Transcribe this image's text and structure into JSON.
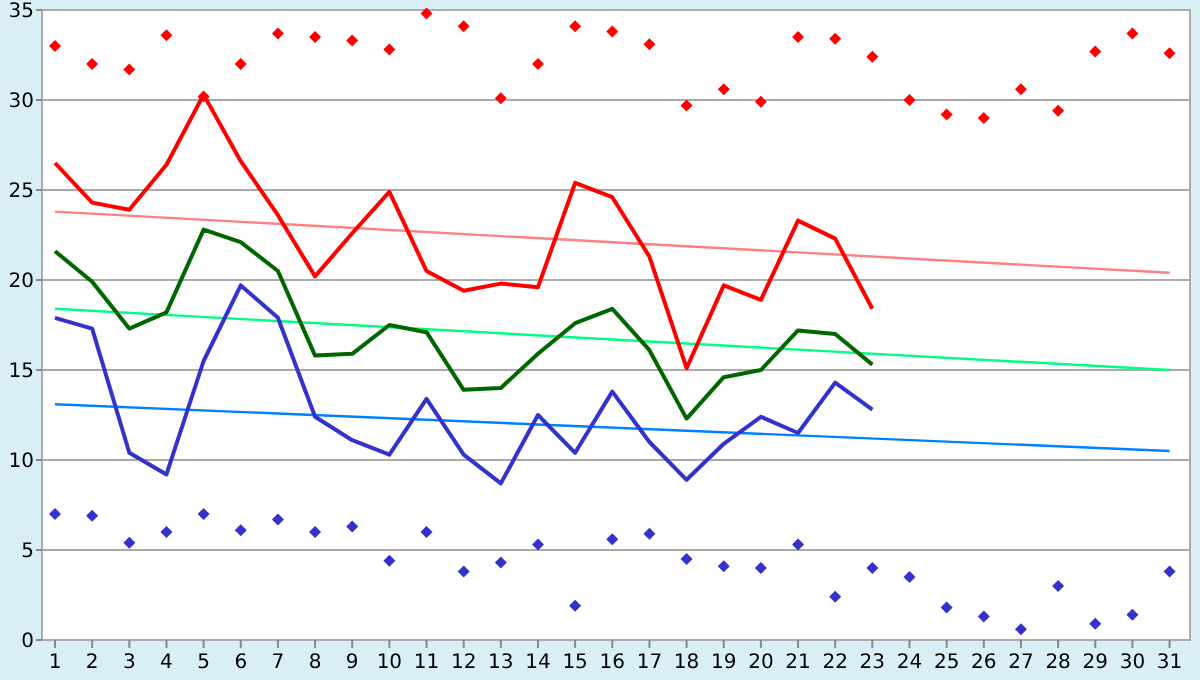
{
  "chart_data": {
    "type": "line",
    "x": [
      1,
      2,
      3,
      4,
      5,
      6,
      7,
      8,
      9,
      10,
      11,
      12,
      13,
      14,
      15,
      16,
      17,
      18,
      19,
      20,
      21,
      22,
      23
    ],
    "xlim": [
      0.65,
      31.55
    ],
    "xticks": [
      1,
      2,
      3,
      4,
      5,
      6,
      7,
      8,
      9,
      10,
      11,
      12,
      13,
      14,
      15,
      16,
      17,
      18,
      19,
      20,
      21,
      22,
      23,
      24,
      25,
      26,
      27,
      28,
      29,
      30,
      31
    ],
    "ylim": [
      0,
      35
    ],
    "yticks": [
      0,
      5,
      10,
      15,
      20,
      25,
      30,
      35
    ],
    "grid": "y",
    "series": [
      {
        "type": "scatter",
        "marker": "diamond",
        "color": "#ff0000",
        "x": [
          1,
          2,
          3,
          4,
          5,
          6,
          7,
          8,
          9,
          10,
          11,
          12,
          13,
          14,
          15,
          16,
          17,
          18,
          19,
          20,
          21,
          22,
          23,
          24,
          25,
          26,
          27,
          28,
          29,
          30,
          31
        ],
        "values": [
          33,
          32,
          31.7,
          33.6,
          30.2,
          32,
          33.7,
          33.5,
          33.3,
          32.8,
          34.8,
          34.1,
          30.1,
          32,
          34.1,
          33.8,
          33.1,
          29.7,
          30.6,
          29.9,
          33.5,
          33.4,
          32.4,
          30,
          29.2,
          29,
          30.6,
          29.4,
          32.7,
          33.7,
          32.6
        ]
      },
      {
        "type": "scatter",
        "marker": "diamond",
        "color": "#3333cc",
        "x": [
          1,
          2,
          3,
          4,
          5,
          6,
          7,
          8,
          9,
          10,
          11,
          12,
          13,
          14,
          15,
          16,
          17,
          18,
          19,
          20,
          21,
          22,
          23,
          24,
          25,
          26,
          27,
          28,
          29,
          30,
          31
        ],
        "values": [
          7,
          6.9,
          5.4,
          6,
          7,
          6.1,
          6.7,
          6,
          6.3,
          4.4,
          6,
          3.8,
          4.3,
          5.3,
          1.9,
          5.6,
          5.9,
          4.5,
          4.1,
          4,
          5.3,
          2.4,
          4,
          3.5,
          1.8,
          1.3,
          0.6,
          3,
          0.9,
          1.4,
          3.8
        ]
      },
      {
        "color": "#ff8080",
        "x": [
          1,
          31
        ],
        "values": [
          23.8,
          20.4
        ]
      },
      {
        "color": "#00ff80",
        "x": [
          1,
          31
        ],
        "values": [
          18.4,
          15
        ]
      },
      {
        "color": "#0080ff",
        "x": [
          1,
          31
        ],
        "values": [
          13.1,
          10.5
        ]
      },
      {
        "color": "#ff0000",
        "values": [
          26.5,
          24.3,
          23.9,
          26.4,
          30.3,
          26.6,
          23.6,
          20.2,
          22.6,
          24.9,
          20.5,
          19.4,
          19.8,
          19.6,
          25.4,
          24.6,
          21.3,
          15.1,
          19.7,
          18.9,
          23.3,
          22.3,
          18.4
        ]
      },
      {
        "color": "#006600",
        "values": [
          21.6,
          19.9,
          17.3,
          18.2,
          22.8,
          22.1,
          20.5,
          15.8,
          15.9,
          17.5,
          17.1,
          13.9,
          14,
          15.9,
          17.6,
          18.4,
          16.1,
          12.3,
          14.6,
          15,
          17.2,
          17,
          15.3
        ]
      },
      {
        "color": "#3333cc",
        "values": [
          17.9,
          17.3,
          10.4,
          9.2,
          15.5,
          19.7,
          17.9,
          12.4,
          11.1,
          10.3,
          13.4,
          10.3,
          8.7,
          12.5,
          10.4,
          13.8,
          11,
          8.9,
          10.9,
          12.4,
          11.5,
          14.3,
          12.8
        ]
      }
    ]
  }
}
